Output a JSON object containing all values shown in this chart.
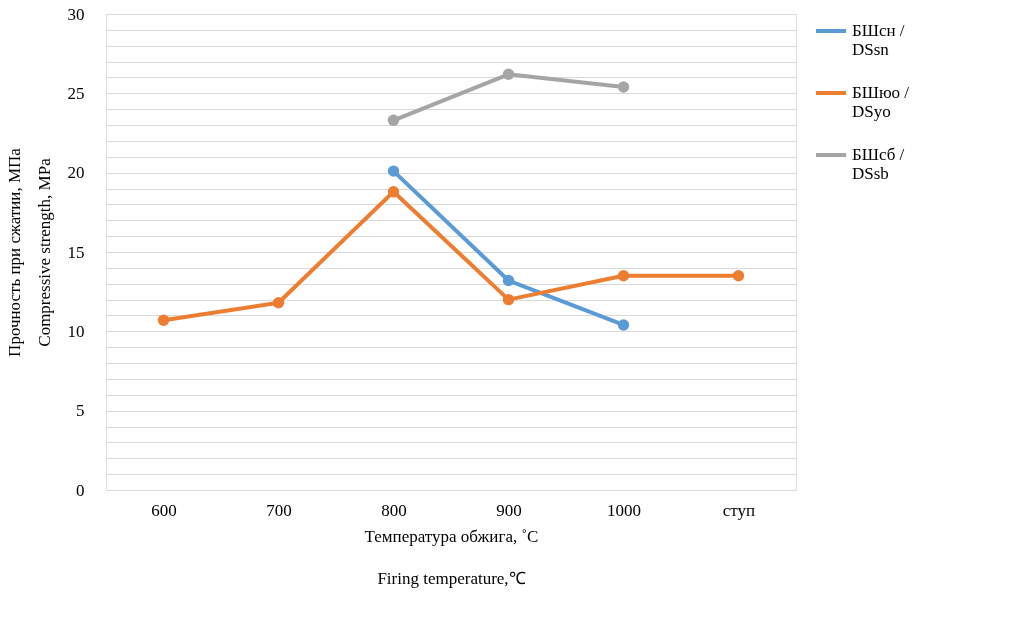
{
  "chart_data": {
    "type": "line",
    "xlabel": "Температура  обжига, ˚С\nFiring temperature,℃",
    "ylabel": "Прочность при сжатии, МПа\nCompressive strength, MPa",
    "categories": [
      "600",
      "700",
      "800",
      "900",
      "1000",
      "ступ"
    ],
    "series": [
      {
        "name": "БШсн /\nDSsn",
        "color": "#5b9bd5",
        "values": [
          null,
          null,
          20.1,
          13.2,
          10.4,
          null
        ]
      },
      {
        "name": "БШюо /\nDSyo",
        "color": "#ed7d31",
        "values": [
          10.7,
          11.8,
          18.8,
          12.0,
          13.5,
          13.5
        ]
      },
      {
        "name": "БШсб /\nDSsb",
        "color": "#a5a5a5",
        "values": [
          null,
          null,
          23.3,
          26.2,
          25.4,
          null
        ]
      }
    ],
    "ylim": [
      0,
      30
    ],
    "yticks": [
      0,
      {
        "value": 1,
        "label": null
      },
      {
        "value": 2,
        "label": null
      },
      {
        "value": 3,
        "label": null
      },
      {
        "value": 4,
        "label": null
      },
      5,
      {
        "value": 6,
        "label": null
      },
      {
        "value": 7,
        "label": null
      },
      {
        "value": 8,
        "label": null
      },
      {
        "value": 9,
        "label": null
      },
      10,
      {
        "value": 11,
        "label": null
      },
      {
        "value": 12,
        "label": null
      },
      {
        "value": 13,
        "label": null
      },
      {
        "value": 14,
        "label": null
      },
      15,
      {
        "value": 16,
        "label": null
      },
      {
        "value": 17,
        "label": null
      },
      {
        "value": 18,
        "label": null
      },
      {
        "value": 19,
        "label": null
      },
      20,
      {
        "value": 21,
        "label": null
      },
      {
        "value": 22,
        "label": null
      },
      {
        "value": 23,
        "label": null
      },
      {
        "value": 24,
        "label": null
      },
      25,
      {
        "value": 26,
        "label": null
      },
      {
        "value": 27,
        "label": null
      },
      {
        "value": 28,
        "label": null
      },
      {
        "value": 29,
        "label": null
      },
      30
    ],
    "grid": "y",
    "legend": "right",
    "marker": "circle",
    "line_style": "solid"
  }
}
